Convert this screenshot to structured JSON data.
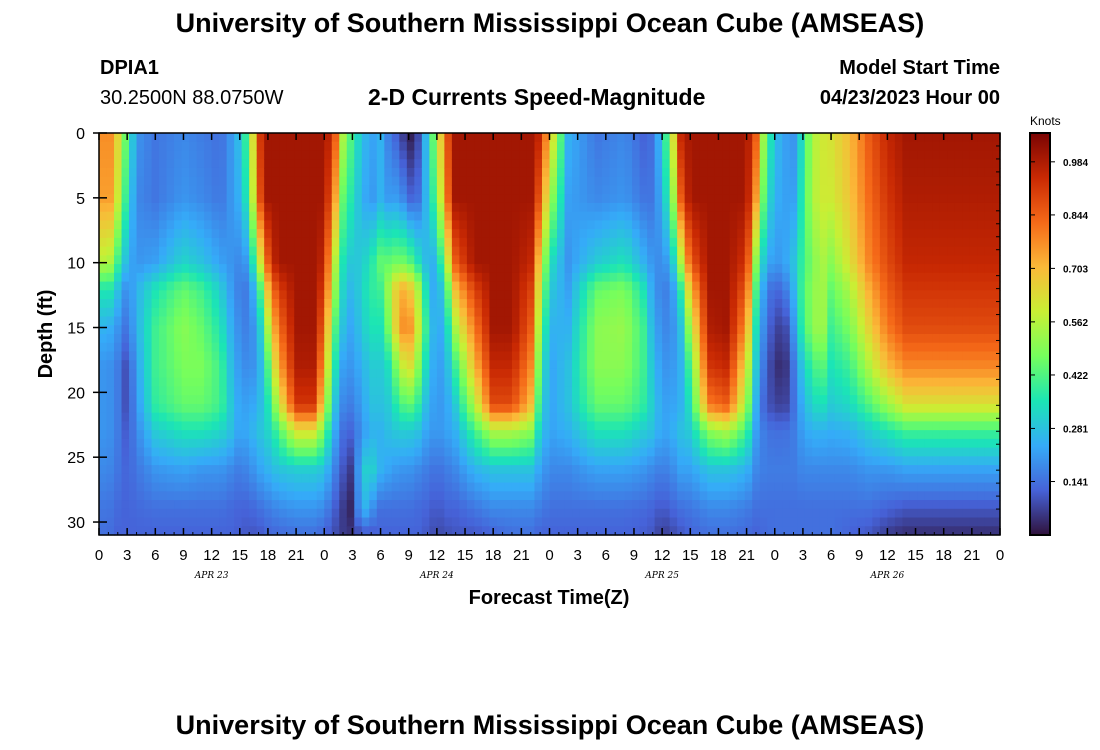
{
  "header": {
    "title": "University of Southern Mississippi Ocean Cube (AMSEAS)",
    "station_id": "DPIA1",
    "station_coords": "30.2500N  88.0750W",
    "subtitle": "2-D Currents Speed-Magnitude",
    "model_start_label": "Model Start Time",
    "model_start_value": "04/23/2023 Hour 00"
  },
  "footer": {
    "title": "University of Southern Mississippi Ocean Cube (AMSEAS)"
  },
  "colors": {
    "colormap": [
      "#30123b",
      "#4662d8",
      "#35abf8",
      "#1be5b5",
      "#74fe5d",
      "#c9ef34",
      "#fbb938",
      "#f56918",
      "#c92903",
      "#7a0403"
    ]
  },
  "chart_data": {
    "type": "heatmap",
    "title": "2-D Currents Speed-Magnitude",
    "xlabel": "Forecast Time(Z)",
    "ylabel": "Depth (ft)",
    "x_tick_labels": [
      "0",
      "3",
      "6",
      "9",
      "12",
      "15",
      "18",
      "21",
      "0",
      "3",
      "6",
      "9",
      "12",
      "15",
      "18",
      "21",
      "0",
      "3",
      "6",
      "9",
      "12",
      "15",
      "18",
      "21",
      "0",
      "3",
      "6",
      "9",
      "12",
      "15",
      "18",
      "21",
      "0"
    ],
    "day_labels": [
      {
        "label": "APR 23",
        "hour": 12
      },
      {
        "label": "APR 24",
        "hour": 36
      },
      {
        "label": "APR 25",
        "hour": 60
      },
      {
        "label": "APR 26",
        "hour": 84
      }
    ],
    "xlim_hours": [
      0,
      96
    ],
    "ylim_ft": [
      0,
      31
    ],
    "y_ticks": [
      0,
      5,
      10,
      15,
      20,
      25,
      30
    ],
    "colorbar": {
      "label": "Knots",
      "ticks": [
        0.141,
        0.281,
        0.422,
        0.562,
        0.703,
        0.844,
        0.984
      ],
      "vmin": 0.0,
      "vmax": 1.06
    },
    "depths_ft": [
      0,
      5,
      10,
      12,
      15,
      18,
      21,
      23,
      26,
      29,
      31
    ],
    "columns": [
      {
        "hour": 0,
        "speeds": [
          0.75,
          0.72,
          0.55,
          0.35,
          0.25,
          0.2,
          0.2,
          0.2,
          0.18,
          0.15,
          0.14
        ]
      },
      {
        "hour": 1,
        "speeds": [
          0.8,
          0.78,
          0.58,
          0.38,
          0.25,
          0.2,
          0.2,
          0.2,
          0.18,
          0.15,
          0.14
        ]
      },
      {
        "hour": 2,
        "speeds": [
          0.65,
          0.6,
          0.4,
          0.28,
          0.2,
          0.16,
          0.16,
          0.16,
          0.15,
          0.13,
          0.12
        ]
      },
      {
        "hour": 3,
        "speeds": [
          0.42,
          0.35,
          0.25,
          0.18,
          0.14,
          0.08,
          0.08,
          0.1,
          0.12,
          0.12,
          0.12
        ]
      },
      {
        "hour": 4,
        "speeds": [
          0.2,
          0.18,
          0.2,
          0.25,
          0.25,
          0.22,
          0.2,
          0.18,
          0.15,
          0.13,
          0.12
        ]
      },
      {
        "hour": 6,
        "speeds": [
          0.15,
          0.15,
          0.22,
          0.35,
          0.4,
          0.4,
          0.38,
          0.3,
          0.2,
          0.14,
          0.12
        ]
      },
      {
        "hour": 9,
        "speeds": [
          0.18,
          0.2,
          0.32,
          0.45,
          0.5,
          0.48,
          0.45,
          0.35,
          0.22,
          0.14,
          0.12
        ]
      },
      {
        "hour": 11,
        "speeds": [
          0.16,
          0.18,
          0.28,
          0.4,
          0.45,
          0.48,
          0.45,
          0.35,
          0.2,
          0.14,
          0.12
        ]
      },
      {
        "hour": 13,
        "speeds": [
          0.14,
          0.15,
          0.22,
          0.3,
          0.35,
          0.4,
          0.4,
          0.32,
          0.2,
          0.14,
          0.12
        ]
      },
      {
        "hour": 14,
        "speeds": [
          0.2,
          0.2,
          0.2,
          0.22,
          0.25,
          0.28,
          0.3,
          0.28,
          0.18,
          0.13,
          0.12
        ]
      },
      {
        "hour": 15,
        "speeds": [
          0.28,
          0.25,
          0.18,
          0.16,
          0.18,
          0.2,
          0.22,
          0.22,
          0.16,
          0.12,
          0.11
        ]
      },
      {
        "hour": 16,
        "speeds": [
          0.45,
          0.4,
          0.22,
          0.16,
          0.16,
          0.18,
          0.22,
          0.24,
          0.18,
          0.12,
          0.1
        ]
      },
      {
        "hour": 17,
        "speeds": [
          0.9,
          0.85,
          0.55,
          0.35,
          0.25,
          0.22,
          0.25,
          0.28,
          0.22,
          0.14,
          0.1
        ]
      },
      {
        "hour": 18,
        "speeds": [
          1.0,
          1.0,
          0.85,
          0.7,
          0.55,
          0.42,
          0.35,
          0.32,
          0.25,
          0.16,
          0.12
        ]
      },
      {
        "hour": 19,
        "speeds": [
          1.0,
          1.0,
          1.0,
          0.9,
          0.8,
          0.7,
          0.55,
          0.4,
          0.28,
          0.18,
          0.13
        ]
      },
      {
        "hour": 21,
        "speeds": [
          1.0,
          1.0,
          1.0,
          1.0,
          1.0,
          0.98,
          0.92,
          0.62,
          0.3,
          0.2,
          0.14
        ]
      },
      {
        "hour": 23,
        "speeds": [
          1.0,
          1.0,
          1.0,
          1.0,
          1.0,
          0.98,
          0.92,
          0.62,
          0.3,
          0.2,
          0.14
        ]
      },
      {
        "hour": 24,
        "speeds": [
          1.0,
          1.0,
          0.95,
          0.9,
          0.82,
          0.72,
          0.6,
          0.45,
          0.28,
          0.18,
          0.12
        ]
      },
      {
        "hour": 25,
        "speeds": [
          0.92,
          0.8,
          0.6,
          0.55,
          0.45,
          0.38,
          0.3,
          0.25,
          0.18,
          0.12,
          0.09
        ]
      },
      {
        "hour": 26,
        "speeds": [
          0.55,
          0.45,
          0.35,
          0.32,
          0.28,
          0.22,
          0.18,
          0.14,
          0.1,
          0.06,
          0.06
        ]
      },
      {
        "hour": 27,
        "speeds": [
          0.4,
          0.35,
          0.28,
          0.25,
          0.22,
          0.2,
          0.16,
          0.12,
          0.05,
          0.02,
          0.05
        ]
      },
      {
        "hour": 28,
        "speeds": [
          0.28,
          0.25,
          0.3,
          0.32,
          0.3,
          0.25,
          0.22,
          0.2,
          0.3,
          0.28,
          0.1
        ]
      },
      {
        "hour": 29,
        "speeds": [
          0.22,
          0.2,
          0.36,
          0.38,
          0.35,
          0.3,
          0.28,
          0.25,
          0.32,
          0.2,
          0.1
        ]
      },
      {
        "hour": 30,
        "speeds": [
          0.25,
          0.25,
          0.45,
          0.4,
          0.35,
          0.3,
          0.28,
          0.25,
          0.25,
          0.14,
          0.12
        ]
      },
      {
        "hour": 31,
        "speeds": [
          0.15,
          0.2,
          0.45,
          0.55,
          0.5,
          0.35,
          0.3,
          0.28,
          0.22,
          0.14,
          0.12
        ]
      },
      {
        "hour": 32,
        "speeds": [
          0.1,
          0.22,
          0.48,
          0.72,
          0.75,
          0.55,
          0.4,
          0.3,
          0.2,
          0.14,
          0.12
        ]
      },
      {
        "hour": 33,
        "speeds": [
          0.0,
          0.12,
          0.45,
          0.7,
          0.8,
          0.65,
          0.45,
          0.3,
          0.2,
          0.14,
          0.12
        ]
      },
      {
        "hour": 34,
        "speeds": [
          0.08,
          0.14,
          0.35,
          0.55,
          0.6,
          0.5,
          0.38,
          0.28,
          0.18,
          0.13,
          0.12
        ]
      },
      {
        "hour": 35,
        "speeds": [
          0.3,
          0.28,
          0.25,
          0.3,
          0.35,
          0.3,
          0.25,
          0.22,
          0.16,
          0.12,
          0.1
        ]
      },
      {
        "hour": 36,
        "speeds": [
          0.55,
          0.45,
          0.25,
          0.2,
          0.2,
          0.2,
          0.2,
          0.2,
          0.14,
          0.1,
          0.08
        ]
      },
      {
        "hour": 37,
        "speeds": [
          0.85,
          0.8,
          0.55,
          0.4,
          0.3,
          0.25,
          0.22,
          0.22,
          0.16,
          0.12,
          0.09
        ]
      },
      {
        "hour": 38,
        "speeds": [
          1.0,
          1.0,
          0.85,
          0.7,
          0.55,
          0.4,
          0.3,
          0.25,
          0.18,
          0.12,
          0.1
        ]
      },
      {
        "hour": 40,
        "speeds": [
          1.0,
          1.0,
          1.0,
          0.9,
          0.8,
          0.7,
          0.55,
          0.4,
          0.25,
          0.15,
          0.1
        ]
      },
      {
        "hour": 42,
        "speeds": [
          1.0,
          1.0,
          1.0,
          1.0,
          1.0,
          0.95,
          0.88,
          0.55,
          0.28,
          0.18,
          0.12
        ]
      },
      {
        "hour": 44,
        "speeds": [
          1.0,
          1.0,
          1.0,
          1.0,
          1.0,
          0.95,
          0.88,
          0.55,
          0.28,
          0.18,
          0.14
        ]
      },
      {
        "hour": 46,
        "speeds": [
          1.0,
          1.0,
          0.95,
          0.9,
          0.85,
          0.78,
          0.7,
          0.5,
          0.28,
          0.18,
          0.14
        ]
      },
      {
        "hour": 47,
        "speeds": [
          0.95,
          0.85,
          0.65,
          0.58,
          0.5,
          0.42,
          0.35,
          0.3,
          0.22,
          0.16,
          0.12
        ]
      },
      {
        "hour": 48,
        "speeds": [
          0.7,
          0.55,
          0.35,
          0.3,
          0.25,
          0.22,
          0.22,
          0.22,
          0.18,
          0.14,
          0.12
        ]
      },
      {
        "hour": 50,
        "speeds": [
          0.25,
          0.22,
          0.2,
          0.22,
          0.25,
          0.28,
          0.28,
          0.25,
          0.18,
          0.14,
          0.12
        ]
      },
      {
        "hour": 53,
        "speeds": [
          0.15,
          0.18,
          0.3,
          0.45,
          0.5,
          0.5,
          0.45,
          0.35,
          0.22,
          0.14,
          0.12
        ]
      },
      {
        "hour": 56,
        "speeds": [
          0.18,
          0.2,
          0.35,
          0.48,
          0.52,
          0.5,
          0.45,
          0.35,
          0.22,
          0.14,
          0.12
        ]
      },
      {
        "hour": 58,
        "speeds": [
          0.12,
          0.15,
          0.25,
          0.35,
          0.4,
          0.4,
          0.38,
          0.3,
          0.2,
          0.13,
          0.11
        ]
      },
      {
        "hour": 59,
        "speeds": [
          0.14,
          0.15,
          0.2,
          0.22,
          0.25,
          0.28,
          0.3,
          0.28,
          0.18,
          0.12,
          0.1
        ]
      },
      {
        "hour": 60,
        "speeds": [
          0.3,
          0.25,
          0.18,
          0.16,
          0.18,
          0.2,
          0.22,
          0.22,
          0.16,
          0.1,
          0.06
        ]
      },
      {
        "hour": 61,
        "speeds": [
          0.55,
          0.45,
          0.25,
          0.18,
          0.18,
          0.2,
          0.22,
          0.24,
          0.18,
          0.12,
          0.08
        ]
      },
      {
        "hour": 62,
        "speeds": [
          0.95,
          0.85,
          0.55,
          0.38,
          0.28,
          0.25,
          0.25,
          0.28,
          0.22,
          0.14,
          0.1
        ]
      },
      {
        "hour": 63,
        "speeds": [
          1.0,
          1.0,
          0.85,
          0.7,
          0.55,
          0.42,
          0.35,
          0.3,
          0.22,
          0.15,
          0.12
        ]
      },
      {
        "hour": 65,
        "speeds": [
          1.0,
          1.0,
          1.0,
          1.0,
          0.98,
          0.92,
          0.8,
          0.5,
          0.28,
          0.18,
          0.14
        ]
      },
      {
        "hour": 67,
        "speeds": [
          1.0,
          1.0,
          1.0,
          1.0,
          1.0,
          0.95,
          0.85,
          0.55,
          0.28,
          0.18,
          0.14
        ]
      },
      {
        "hour": 69,
        "speeds": [
          1.0,
          1.0,
          0.92,
          0.85,
          0.75,
          0.62,
          0.52,
          0.4,
          0.25,
          0.16,
          0.13
        ]
      },
      {
        "hour": 70,
        "speeds": [
          0.85,
          0.75,
          0.5,
          0.42,
          0.35,
          0.3,
          0.25,
          0.22,
          0.18,
          0.14,
          0.12
        ]
      },
      {
        "hour": 71,
        "speeds": [
          0.45,
          0.38,
          0.25,
          0.18,
          0.15,
          0.12,
          0.1,
          0.15,
          0.16,
          0.14,
          0.13
        ]
      },
      {
        "hour": 72,
        "speeds": [
          0.28,
          0.25,
          0.2,
          0.12,
          0.08,
          0.05,
          0.08,
          0.14,
          0.16,
          0.14,
          0.14
        ]
      },
      {
        "hour": 73,
        "speeds": [
          0.22,
          0.22,
          0.22,
          0.15,
          0.06,
          0.03,
          0.06,
          0.14,
          0.16,
          0.14,
          0.14
        ]
      },
      {
        "hour": 74,
        "speeds": [
          0.2,
          0.22,
          0.28,
          0.25,
          0.2,
          0.15,
          0.14,
          0.16,
          0.16,
          0.14,
          0.14
        ]
      },
      {
        "hour": 75,
        "speeds": [
          0.35,
          0.38,
          0.4,
          0.42,
          0.4,
          0.3,
          0.25,
          0.22,
          0.18,
          0.14,
          0.14
        ]
      },
      {
        "hour": 76,
        "speeds": [
          0.55,
          0.55,
          0.48,
          0.5,
          0.5,
          0.4,
          0.32,
          0.25,
          0.18,
          0.14,
          0.14
        ]
      },
      {
        "hour": 77,
        "speeds": [
          0.6,
          0.6,
          0.55,
          0.55,
          0.55,
          0.45,
          0.35,
          0.25,
          0.18,
          0.14,
          0.14
        ]
      },
      {
        "hour": 78,
        "speeds": [
          0.62,
          0.6,
          0.5,
          0.45,
          0.4,
          0.35,
          0.3,
          0.24,
          0.18,
          0.14,
          0.14
        ]
      },
      {
        "hour": 80,
        "speeds": [
          0.7,
          0.68,
          0.62,
          0.55,
          0.48,
          0.4,
          0.33,
          0.25,
          0.18,
          0.14,
          0.12
        ]
      },
      {
        "hour": 82,
        "speeds": [
          0.85,
          0.82,
          0.78,
          0.72,
          0.65,
          0.55,
          0.42,
          0.3,
          0.2,
          0.14,
          0.1
        ]
      },
      {
        "hour": 84,
        "speeds": [
          0.95,
          0.92,
          0.88,
          0.85,
          0.8,
          0.7,
          0.52,
          0.35,
          0.2,
          0.12,
          0.06
        ]
      },
      {
        "hour": 86,
        "speeds": [
          1.0,
          0.98,
          0.95,
          0.92,
          0.88,
          0.78,
          0.62,
          0.4,
          0.22,
          0.1,
          0.04
        ]
      }
    ]
  }
}
